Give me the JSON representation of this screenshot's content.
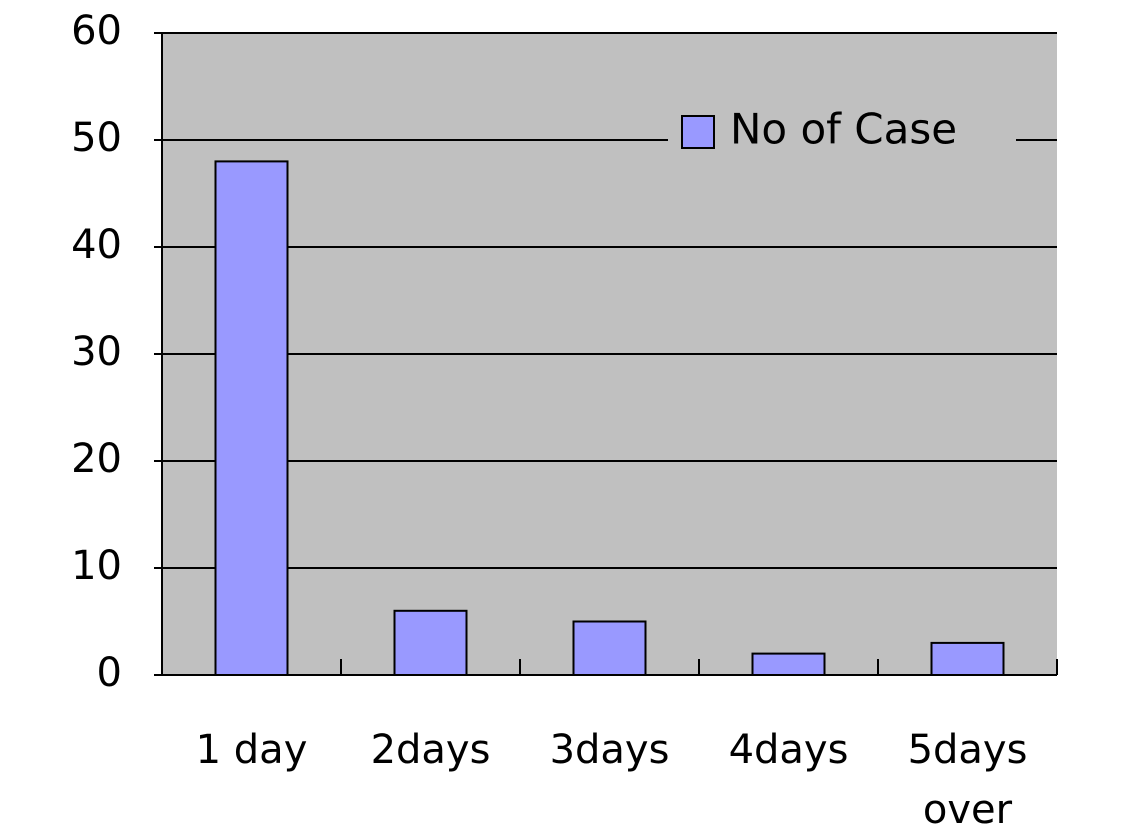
{
  "chart_data": {
    "type": "bar",
    "categories": [
      "1 day",
      "2days",
      "3days",
      "4days",
      "5days\nover"
    ],
    "series": [
      {
        "name": "No of Case",
        "color": "#9999ff",
        "values": [
          48,
          6,
          5,
          2,
          3
        ]
      }
    ],
    "ylim": [
      0,
      60
    ],
    "yticks": [
      0,
      10,
      20,
      30,
      40,
      50,
      60
    ],
    "grid": true,
    "legend": "upper right"
  }
}
